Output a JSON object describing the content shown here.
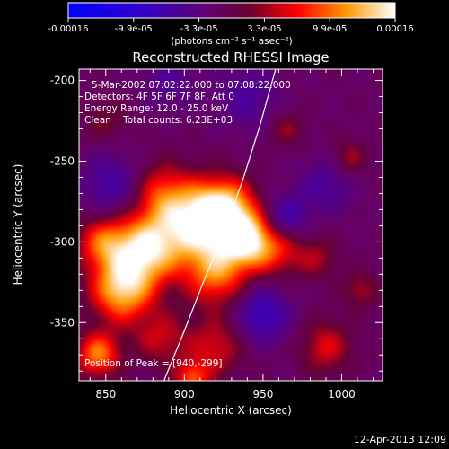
{
  "chart_data": {
    "type": "heatmap",
    "title": "Reconstructed RHESSI Image",
    "xlabel": "Heliocentric X (arcsec)",
    "ylabel": "Heliocentric Y (arcsec)",
    "xlim": [
      833,
      1026
    ],
    "ylim": [
      -386,
      -193
    ],
    "x_ticks": [
      850,
      900,
      950,
      1000
    ],
    "y_ticks": [
      -200,
      -250,
      -300,
      -350
    ],
    "colorbar": {
      "label": "(photons cm⁻² s⁻¹ asec⁻²)",
      "range": [
        -0.00016,
        0.00016
      ],
      "tick_labels": [
        "-0.00016",
        "-9.9e-05",
        "-3.3e-05",
        "3.3e-05",
        "9.9e-05",
        "0.00016"
      ]
    },
    "annotations": [
      "5-Mar-2002 07:02:22.000 to 07:08:22.000",
      "Detectors: 4F 5F 6F 7F 8F, Att 0",
      "Energy Range: 12.0 - 25.0 keV",
      "Clean    Total counts: 6.23E+03"
    ],
    "peak_label": "Position of Peak = [940,-299]",
    "peak": [
      940,
      -299
    ],
    "limb_curve": [
      [
        887,
        -386
      ],
      [
        900,
        -355
      ],
      [
        912,
        -325
      ],
      [
        925,
        -295
      ],
      [
        937,
        -262
      ],
      [
        948,
        -228
      ],
      [
        958,
        -193
      ]
    ],
    "sources": [
      {
        "x": 925,
        "y": -280,
        "amp": 1.0,
        "sigma": 14
      },
      {
        "x": 940,
        "y": -299,
        "amp": 0.9,
        "sigma": 12
      },
      {
        "x": 905,
        "y": -290,
        "amp": 0.8,
        "sigma": 16
      },
      {
        "x": 875,
        "y": -305,
        "amp": 0.95,
        "sigma": 15
      },
      {
        "x": 860,
        "y": -330,
        "amp": 0.9,
        "sigma": 14
      },
      {
        "x": 848,
        "y": -300,
        "amp": 0.6,
        "sigma": 12
      },
      {
        "x": 885,
        "y": -270,
        "amp": 0.55,
        "sigma": 14
      },
      {
        "x": 920,
        "y": -320,
        "amp": 0.7,
        "sigma": 14
      },
      {
        "x": 960,
        "y": -305,
        "amp": 0.45,
        "sigma": 12
      },
      {
        "x": 885,
        "y": -360,
        "amp": 0.4,
        "sigma": 12
      },
      {
        "x": 920,
        "y": -365,
        "amp": 0.45,
        "sigma": 13
      },
      {
        "x": 845,
        "y": -370,
        "amp": 0.75,
        "sigma": 10
      },
      {
        "x": 905,
        "y": -385,
        "amp": 0.6,
        "sigma": 8
      },
      {
        "x": 990,
        "y": -365,
        "amp": 0.45,
        "sigma": 12
      },
      {
        "x": 985,
        "y": -310,
        "amp": 0.3,
        "sigma": 10
      },
      {
        "x": 1012,
        "y": -330,
        "amp": 0.35,
        "sigma": 8
      },
      {
        "x": 965,
        "y": -230,
        "amp": 0.3,
        "sigma": 8
      },
      {
        "x": 1005,
        "y": -248,
        "amp": 0.35,
        "sigma": 8
      },
      {
        "x": 850,
        "y": -225,
        "amp": 0.25,
        "sigma": 10
      },
      {
        "x": 950,
        "y": -345,
        "amp": -0.6,
        "sigma": 12
      },
      {
        "x": 965,
        "y": -285,
        "amp": -0.5,
        "sigma": 10
      },
      {
        "x": 855,
        "y": -265,
        "amp": -0.45,
        "sigma": 14
      },
      {
        "x": 990,
        "y": -265,
        "amp": -0.35,
        "sigma": 12
      },
      {
        "x": 940,
        "y": -210,
        "amp": -0.35,
        "sigma": 14
      },
      {
        "x": 890,
        "y": -200,
        "amp": -0.3,
        "sigma": 12
      }
    ],
    "background_level": -0.12,
    "grid": false
  },
  "footer": {
    "timestamp": "12-Apr-2013 12:09"
  }
}
